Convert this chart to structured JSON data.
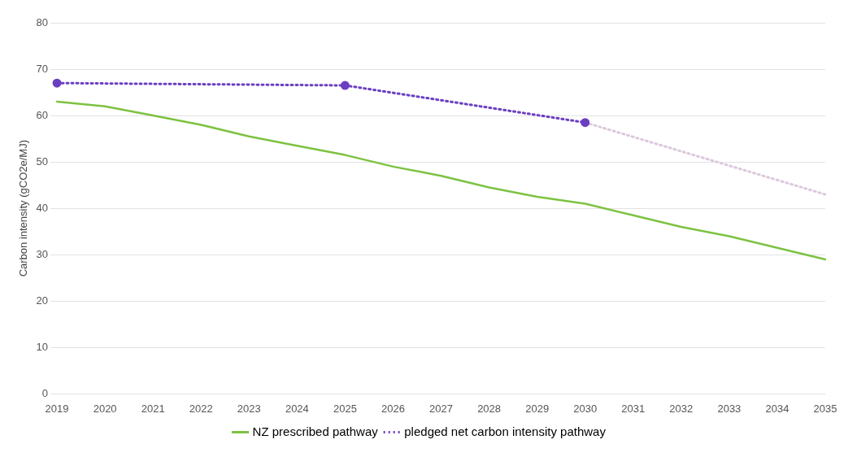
{
  "chart_data": {
    "type": "line",
    "ylabel": "Carbon intensity (gCO2e/MJ)",
    "categories": [
      "2019",
      "2020",
      "2021",
      "2022",
      "2023",
      "2024",
      "2025",
      "2026",
      "2027",
      "2028",
      "2029",
      "2030",
      "2031",
      "2032",
      "2033",
      "2034",
      "2035"
    ],
    "series": [
      {
        "name": "NZ prescribed pathway",
        "color": "#7dc242",
        "values": [
          63,
          62,
          60,
          58,
          55.5,
          53.5,
          51.5,
          49,
          47,
          44.5,
          42.5,
          41,
          38.5,
          36,
          34,
          31.5,
          29
        ],
        "marker": "none",
        "line_style": "solid"
      },
      {
        "name": "pledged net carbon intensity pathway",
        "color": "#6a3fc2",
        "values": [
          67,
          null,
          null,
          null,
          null,
          null,
          66.5,
          null,
          null,
          null,
          null,
          58.5,
          null,
          null,
          null,
          null,
          null
        ],
        "marker": "circle",
        "line_style": "dotted"
      },
      {
        "color": "#dcc8dc",
        "values": [
          null,
          null,
          null,
          null,
          null,
          null,
          null,
          null,
          null,
          null,
          null,
          58.5,
          null,
          null,
          null,
          null,
          43
        ],
        "marker": "none",
        "line_style": "dotted"
      }
    ],
    "ylim": [
      0,
      80
    ],
    "yticks": [
      0,
      10,
      20,
      30,
      40,
      50,
      60,
      70,
      80
    ],
    "grid": "y",
    "legend": "bottom"
  }
}
